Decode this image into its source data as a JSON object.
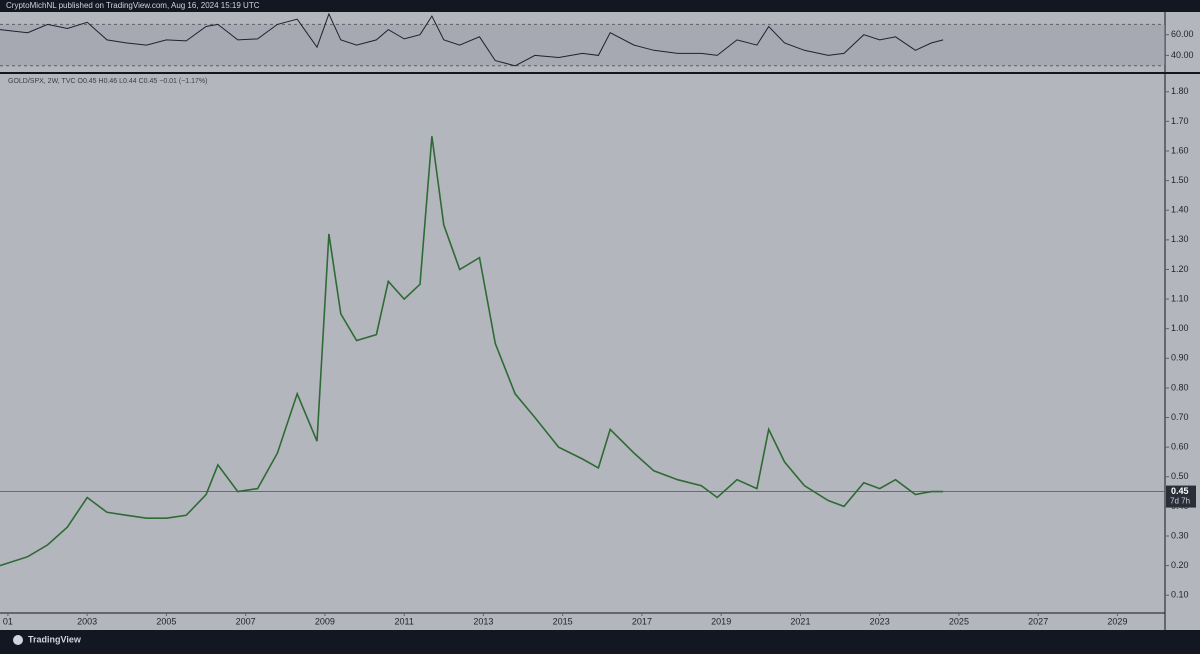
{
  "header": "CryptoMichNL published on TradingView.com, Aug 16, 2024 15:19 UTC",
  "brand": "TradingView",
  "chart_data": [
    {
      "type": "line",
      "pane": "RSI",
      "color": "#1e222d",
      "x": [
        2000.8,
        2001.5,
        2002.0,
        2002.5,
        2003.0,
        2003.5,
        2004.0,
        2004.5,
        2005.0,
        2005.5,
        2006.0,
        2006.3,
        2006.8,
        2007.3,
        2007.8,
        2008.3,
        2008.8,
        2009.1,
        2009.4,
        2009.8,
        2010.3,
        2010.6,
        2011.0,
        2011.4,
        2011.7,
        2012.0,
        2012.4,
        2012.9,
        2013.3,
        2013.8,
        2014.3,
        2014.9,
        2015.5,
        2015.9,
        2016.2,
        2016.8,
        2017.3,
        2017.9,
        2018.5,
        2018.9,
        2019.4,
        2019.9,
        2020.2,
        2020.6,
        2021.1,
        2021.7,
        2022.1,
        2022.6,
        2023.0,
        2023.4,
        2023.9,
        2024.3,
        2024.6
      ],
      "values": [
        65,
        62,
        70,
        66,
        72,
        55,
        52,
        50,
        55,
        54,
        68,
        70,
        55,
        56,
        70,
        75,
        48,
        80,
        55,
        50,
        55,
        65,
        56,
        60,
        78,
        55,
        50,
        58,
        35,
        30,
        40,
        38,
        42,
        40,
        62,
        50,
        45,
        42,
        42,
        40,
        55,
        50,
        68,
        52,
        45,
        40,
        42,
        60,
        55,
        58,
        45,
        52,
        55
      ],
      "xlim": [
        2000.8,
        2030.2
      ],
      "ylim": [
        24,
        81
      ],
      "bands": [
        30,
        70
      ],
      "yticks": [
        {
          "value": 60,
          "label": "60.00"
        },
        {
          "value": 40,
          "label": "40.00"
        }
      ]
    },
    {
      "type": "line",
      "pane": "price",
      "color": "#2e6b34",
      "legend": "GOLD/SPX, 2W, TVC  O0.45 H0.46 L0.44 C0.45 −0.01 (−1.17%)",
      "countdown": "7d 7h",
      "last_price": 0.45,
      "last_price_label": "0.45",
      "x": [
        2000.8,
        2001.5,
        2002.0,
        2002.5,
        2003.0,
        2003.5,
        2004.0,
        2004.5,
        2005.0,
        2005.5,
        2006.0,
        2006.3,
        2006.8,
        2007.3,
        2007.8,
        2008.3,
        2008.8,
        2009.1,
        2009.4,
        2009.8,
        2010.3,
        2010.6,
        2011.0,
        2011.4,
        2011.7,
        2012.0,
        2012.4,
        2012.9,
        2013.3,
        2013.8,
        2014.3,
        2014.9,
        2015.5,
        2015.9,
        2016.2,
        2016.8,
        2017.3,
        2017.9,
        2018.5,
        2018.9,
        2019.4,
        2019.9,
        2020.2,
        2020.6,
        2021.1,
        2021.7,
        2022.1,
        2022.6,
        2023.0,
        2023.4,
        2023.9,
        2024.3,
        2024.6
      ],
      "values": [
        0.2,
        0.23,
        0.27,
        0.33,
        0.43,
        0.38,
        0.37,
        0.36,
        0.36,
        0.37,
        0.44,
        0.54,
        0.45,
        0.46,
        0.58,
        0.78,
        0.62,
        1.32,
        1.05,
        0.96,
        0.98,
        1.16,
        1.1,
        1.15,
        1.65,
        1.35,
        1.2,
        1.24,
        0.95,
        0.78,
        0.7,
        0.6,
        0.56,
        0.53,
        0.66,
        0.58,
        0.52,
        0.49,
        0.47,
        0.43,
        0.49,
        0.46,
        0.66,
        0.55,
        0.47,
        0.42,
        0.4,
        0.48,
        0.46,
        0.49,
        0.44,
        0.45,
        0.45
      ],
      "xlim": [
        2000.8,
        2030.2
      ],
      "ylim": [
        0.04,
        1.86
      ],
      "xticks": [
        {
          "value": 2001,
          "label": "01"
        },
        2003,
        2005,
        2007,
        2009,
        2011,
        2013,
        2015,
        2017,
        2019,
        2021,
        2023,
        2025,
        2027,
        2029
      ],
      "yticks": [
        {
          "value": 0.1,
          "label": "0.10"
        },
        {
          "value": 0.2,
          "label": "0.20"
        },
        {
          "value": 0.3,
          "label": "0.30"
        },
        {
          "value": 0.4,
          "label": "0.40"
        },
        {
          "value": 0.5,
          "label": "0.50"
        },
        {
          "value": 0.6,
          "label": "0.60"
        },
        {
          "value": 0.7,
          "label": "0.70"
        },
        {
          "value": 0.8,
          "label": "0.80"
        },
        {
          "value": 0.9,
          "label": "0.90"
        },
        {
          "value": 1.0,
          "label": "1.00"
        },
        {
          "value": 1.1,
          "label": "1.10"
        },
        {
          "value": 1.2,
          "label": "1.20"
        },
        {
          "value": 1.3,
          "label": "1.30"
        },
        {
          "value": 1.4,
          "label": "1.40"
        },
        {
          "value": 1.5,
          "label": "1.50"
        },
        {
          "value": 1.6,
          "label": "1.60"
        },
        {
          "value": 1.7,
          "label": "1.70"
        },
        {
          "value": 1.8,
          "label": "1.80"
        }
      ]
    }
  ]
}
